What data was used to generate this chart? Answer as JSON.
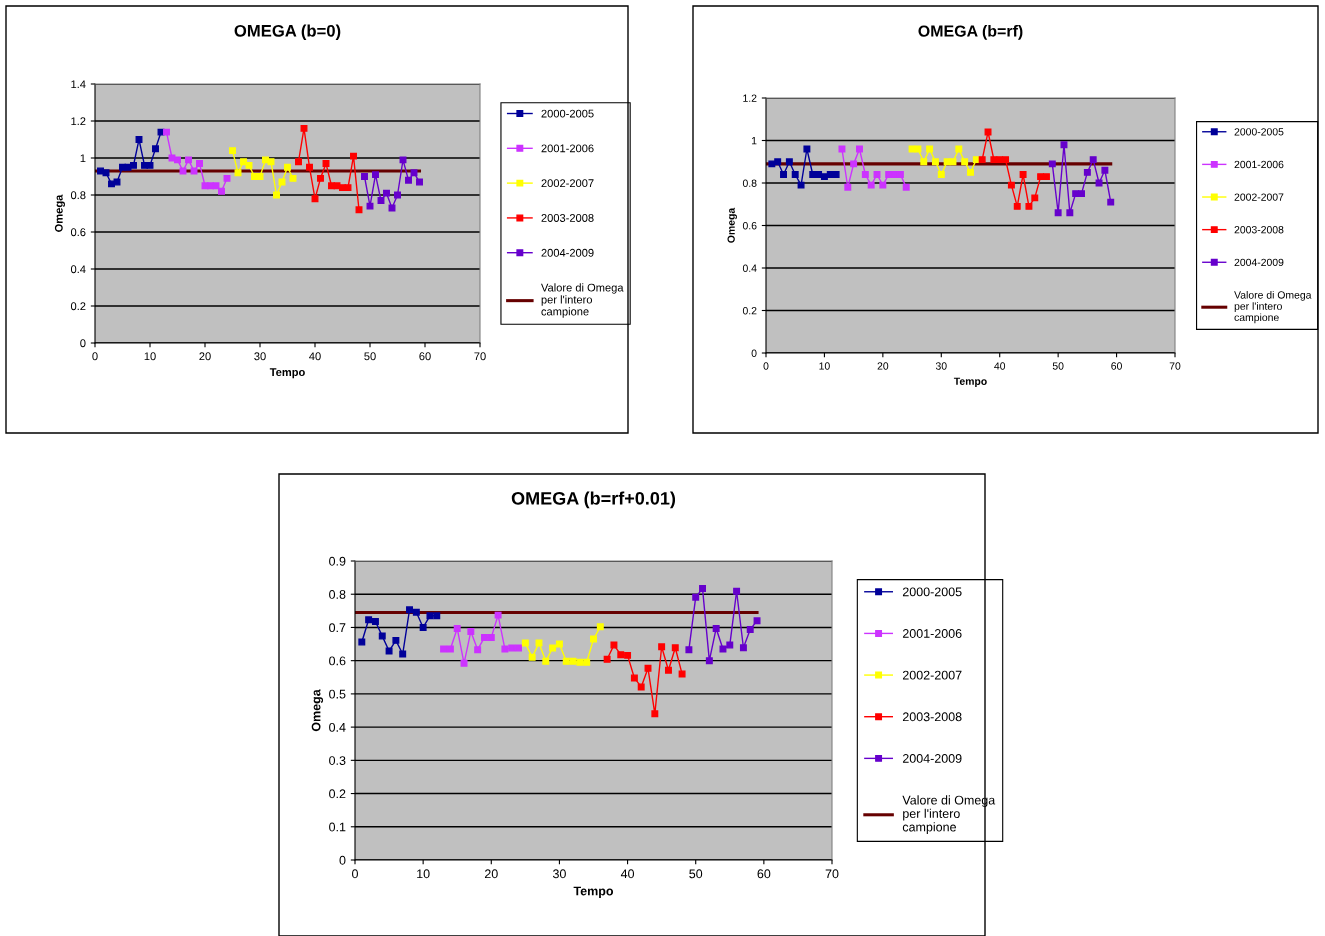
{
  "chart_data": [
    {
      "type": "line",
      "title": "OMEGA (b=0)",
      "xlabel": "Tempo",
      "ylabel": "Omega",
      "xlim": [
        0,
        70
      ],
      "xticks": [
        0,
        10,
        20,
        30,
        40,
        50,
        60,
        70
      ],
      "ylim": [
        0,
        1.4
      ],
      "yticks": [
        0,
        0.2,
        0.4,
        0.6,
        0.8,
        1,
        1.2,
        1.4
      ],
      "grid": "y",
      "legend": "right",
      "marker": "square",
      "series": [
        {
          "name": "2000-2005",
          "color": "#000099",
          "x": [
            1,
            2,
            3,
            4,
            5,
            6,
            7,
            8,
            9,
            10,
            11,
            12
          ],
          "values": [
            0.93,
            0.92,
            0.86,
            0.87,
            0.95,
            0.95,
            0.96,
            1.1,
            0.96,
            0.96,
            1.05,
            1.14
          ]
        },
        {
          "name": "2001-2006",
          "color": "#cc33ff",
          "x": [
            13,
            14,
            15,
            16,
            17,
            18,
            19,
            20,
            21,
            22,
            23,
            24
          ],
          "values": [
            1.14,
            1.0,
            0.99,
            0.93,
            0.99,
            0.93,
            0.97,
            0.85,
            0.85,
            0.85,
            0.82,
            0.89
          ]
        },
        {
          "name": "2002-2007",
          "color": "#ffff00",
          "x": [
            25,
            26,
            27,
            28,
            29,
            30,
            31,
            32,
            33,
            34,
            35,
            36
          ],
          "values": [
            1.04,
            0.92,
            0.98,
            0.96,
            0.9,
            0.9,
            0.99,
            0.98,
            0.8,
            0.87,
            0.95,
            0.89
          ]
        },
        {
          "name": "2003-2008",
          "color": "#ff0000",
          "x": [
            37,
            38,
            39,
            40,
            41,
            42,
            43,
            44,
            45,
            46,
            47,
            48
          ],
          "values": [
            0.98,
            1.16,
            0.95,
            0.78,
            0.89,
            0.97,
            0.85,
            0.85,
            0.84,
            0.84,
            1.01,
            0.72
          ]
        },
        {
          "name": "2004-2009",
          "color": "#6600cc",
          "x": [
            49,
            50,
            51,
            52,
            53,
            54,
            55,
            56,
            57,
            58,
            59
          ],
          "values": [
            0.9,
            0.74,
            0.91,
            0.77,
            0.81,
            0.73,
            0.8,
            0.99,
            0.88,
            0.92,
            0.87
          ]
        },
        {
          "name": "Valore di Omega per l'intero campione",
          "color": "#660000",
          "marker": "none",
          "x": [
            0,
            59
          ],
          "values": [
            0.93,
            0.93
          ]
        }
      ]
    },
    {
      "type": "line",
      "title": "OMEGA (b=rf)",
      "xlabel": "Tempo",
      "ylabel": "Omega",
      "xlim": [
        0,
        70
      ],
      "xticks": [
        0,
        10,
        20,
        30,
        40,
        50,
        60,
        70
      ],
      "ylim": [
        0,
        1.2
      ],
      "yticks": [
        0,
        0.2,
        0.4,
        0.6,
        0.8,
        1,
        1.2
      ],
      "grid": "y",
      "legend": "right",
      "marker": "square",
      "series": [
        {
          "name": "2000-2005",
          "color": "#000099",
          "x": [
            1,
            2,
            3,
            4,
            5,
            6,
            7,
            8,
            9,
            10,
            11,
            12
          ],
          "values": [
            0.89,
            0.9,
            0.84,
            0.9,
            0.84,
            0.79,
            0.96,
            0.84,
            0.84,
            0.83,
            0.84,
            0.84
          ]
        },
        {
          "name": "2001-2006",
          "color": "#cc33ff",
          "x": [
            13,
            14,
            15,
            16,
            17,
            18,
            19,
            20,
            21,
            22,
            23,
            24
          ],
          "values": [
            0.96,
            0.78,
            0.89,
            0.96,
            0.84,
            0.79,
            0.84,
            0.79,
            0.84,
            0.84,
            0.84,
            0.78
          ]
        },
        {
          "name": "2002-2007",
          "color": "#ffff00",
          "x": [
            25,
            26,
            27,
            28,
            29,
            30,
            31,
            32,
            33,
            34,
            35,
            36
          ],
          "values": [
            0.96,
            0.96,
            0.9,
            0.96,
            0.9,
            0.84,
            0.9,
            0.9,
            0.96,
            0.9,
            0.85,
            0.91
          ]
        },
        {
          "name": "2003-2008",
          "color": "#ff0000",
          "x": [
            37,
            38,
            39,
            40,
            41,
            42,
            43,
            44,
            45,
            46,
            47,
            48
          ],
          "values": [
            0.91,
            1.04,
            0.91,
            0.91,
            0.91,
            0.79,
            0.69,
            0.84,
            0.69,
            0.73,
            0.83,
            0.83
          ]
        },
        {
          "name": "2004-2009",
          "color": "#6600cc",
          "x": [
            49,
            50,
            51,
            52,
            53,
            54,
            55,
            56,
            57,
            58,
            59
          ],
          "values": [
            0.89,
            0.66,
            0.98,
            0.66,
            0.75,
            0.75,
            0.85,
            0.91,
            0.8,
            0.86,
            0.71
          ]
        },
        {
          "name": "Valore di Omega per l'intero campione",
          "color": "#660000",
          "marker": "none",
          "x": [
            0,
            59
          ],
          "values": [
            0.89,
            0.89
          ]
        }
      ]
    },
    {
      "type": "line",
      "title": "OMEGA (b=rf+0.01)",
      "xlabel": "Tempo",
      "ylabel": "Omega",
      "xlim": [
        0,
        70
      ],
      "xticks": [
        0,
        10,
        20,
        30,
        40,
        50,
        60,
        70
      ],
      "ylim": [
        0,
        0.9
      ],
      "yticks": [
        0,
        0.1,
        0.2,
        0.3,
        0.4,
        0.5,
        0.6,
        0.7,
        0.8,
        0.9
      ],
      "grid": "y",
      "legend": "right",
      "marker": "square",
      "series": [
        {
          "name": "2000-2005",
          "color": "#000099",
          "x": [
            1,
            2,
            3,
            4,
            5,
            6,
            7,
            8,
            9,
            10,
            11,
            12
          ],
          "values": [
            0.656,
            0.723,
            0.718,
            0.674,
            0.629,
            0.661,
            0.62,
            0.753,
            0.746,
            0.7,
            0.735,
            0.735
          ]
        },
        {
          "name": "2001-2006",
          "color": "#cc33ff",
          "x": [
            13,
            14,
            15,
            16,
            17,
            18,
            19,
            20,
            21,
            22,
            23,
            24
          ],
          "values": [
            0.635,
            0.635,
            0.697,
            0.592,
            0.688,
            0.633,
            0.67,
            0.67,
            0.737,
            0.635,
            0.638,
            0.638
          ]
        },
        {
          "name": "2002-2007",
          "color": "#ffff00",
          "x": [
            25,
            26,
            27,
            28,
            29,
            30,
            31,
            32,
            33,
            34,
            35,
            36
          ],
          "values": [
            0.653,
            0.61,
            0.653,
            0.598,
            0.638,
            0.65,
            0.598,
            0.598,
            0.595,
            0.595,
            0.665,
            0.702
          ]
        },
        {
          "name": "2003-2008",
          "color": "#ff0000",
          "x": [
            37,
            38,
            39,
            40,
            41,
            42,
            43,
            44,
            45,
            46,
            47,
            48
          ],
          "values": [
            0.604,
            0.647,
            0.618,
            0.616,
            0.548,
            0.521,
            0.577,
            0.44,
            0.642,
            0.571,
            0.639,
            0.56
          ]
        },
        {
          "name": "2004-2009",
          "color": "#6600cc",
          "x": [
            49,
            50,
            51,
            52,
            53,
            54,
            55,
            56,
            57,
            58,
            59
          ],
          "values": [
            0.633,
            0.791,
            0.817,
            0.6,
            0.697,
            0.635,
            0.647,
            0.809,
            0.639,
            0.694,
            0.72
          ]
        },
        {
          "name": "Valore di Omega per l'intero campione",
          "color": "#660000",
          "marker": "none",
          "x": [
            0,
            59
          ],
          "values": [
            0.745,
            0.745
          ]
        }
      ]
    }
  ]
}
